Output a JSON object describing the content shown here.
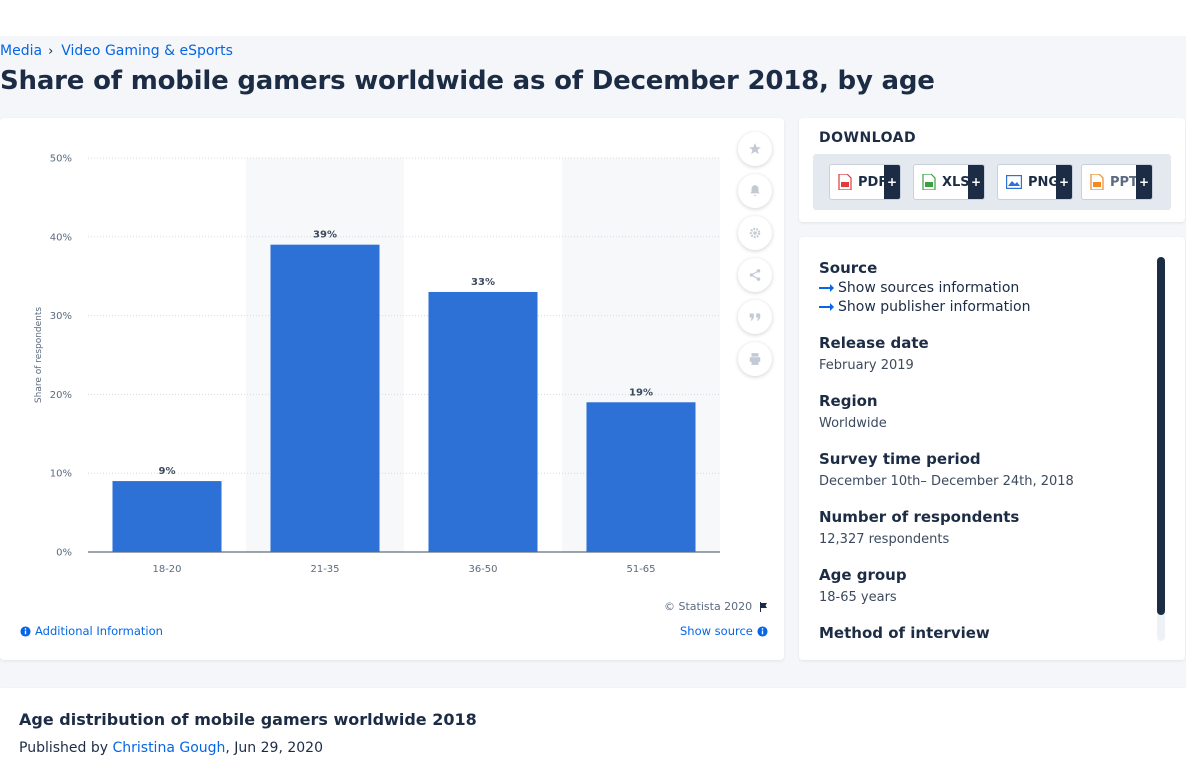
{
  "breadcrumb": {
    "items": [
      "Media",
      "Video Gaming & eSports"
    ],
    "separator": "›"
  },
  "page": {
    "title": "Share of mobile gamers worldwide as of December 2018, by age"
  },
  "chart_data": {
    "type": "bar",
    "categories": [
      "18-20",
      "21-35",
      "36-50",
      "51-65"
    ],
    "values": [
      9,
      39,
      33,
      19
    ],
    "value_labels": [
      "9%",
      "39%",
      "33%",
      "19%"
    ],
    "ylabel": "Share of respondents",
    "ylim": [
      0,
      50
    ],
    "yticks": [
      "0%",
      "10%",
      "20%",
      "30%",
      "40%",
      "50%"
    ],
    "grid": true,
    "bar_color": "#2d71d6"
  },
  "chart_tools": {
    "icons": [
      "star-icon",
      "bell-icon",
      "gear-icon",
      "share-icon",
      "quote-icon",
      "print-icon"
    ]
  },
  "chart_footer": {
    "copyright": "© Statista 2020",
    "additional_info": "Additional Information",
    "show_source": "Show source"
  },
  "download": {
    "title": "DOWNLOAD",
    "buttons": [
      {
        "label": "PDF",
        "color": "#e03a3a"
      },
      {
        "label": "XLS",
        "color": "#3aa141"
      },
      {
        "label": "PNG",
        "color": "#2d71d6"
      },
      {
        "label": "PPT",
        "color": "#f08a24"
      }
    ],
    "plus": "+"
  },
  "info": {
    "source_label": "Source",
    "show_sources": "Show sources information",
    "show_publisher": "Show publisher information",
    "release_label": "Release date",
    "release_value": "February 2019",
    "region_label": "Region",
    "region_value": "Worldwide",
    "survey_label": "Survey time period",
    "survey_value": "December 10th– December 24th, 2018",
    "respondents_label": "Number of respondents",
    "respondents_value": "12,327 respondents",
    "age_label": "Age group",
    "age_value": "18-65 years",
    "method_label": "Method of interview"
  },
  "report": {
    "title": "Age distribution of mobile gamers worldwide 2018",
    "published_by": "Published by",
    "author": "Christina Gough",
    "date": ", Jun 29, 2020"
  },
  "colors": {
    "accent": "#0666e5",
    "dark": "#1d2c45"
  }
}
